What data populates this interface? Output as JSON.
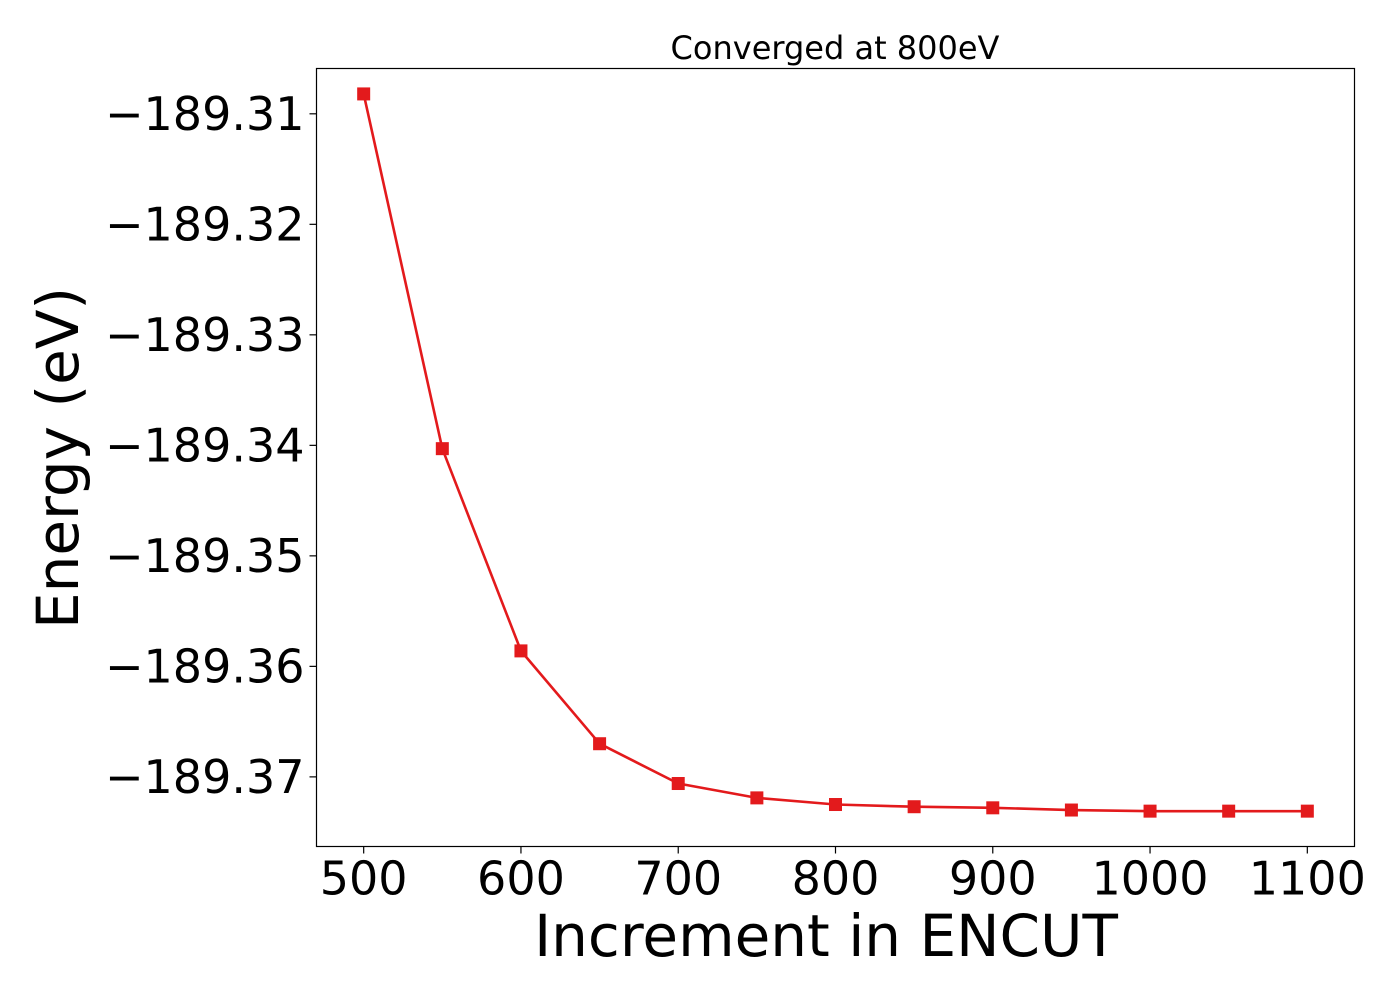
{
  "chart_data": {
    "type": "line",
    "title": "Converged at 800eV",
    "xlabel": "Increment in ENCUT",
    "ylabel": "Energy (eV)",
    "x": [
      500,
      550,
      600,
      650,
      700,
      750,
      800,
      850,
      900,
      950,
      1000,
      1050,
      1100
    ],
    "series": [
      {
        "values": [
          -189.3082,
          -189.3403,
          -189.3586,
          -189.367,
          -189.3706,
          -189.3719,
          -189.3725,
          -189.3727,
          -189.3728,
          -189.373,
          -189.3731,
          -189.3731,
          -189.3731
        ],
        "color": "#e31a1c",
        "marker": "square"
      }
    ],
    "xticks": [
      500,
      600,
      700,
      800,
      900,
      1000,
      1100
    ],
    "yticks": [
      -189.31,
      -189.32,
      -189.33,
      -189.34,
      -189.35,
      -189.36,
      -189.37
    ],
    "ytick_labels": [
      "−189.31",
      "−189.32",
      "−189.33",
      "−189.34",
      "−189.35",
      "−189.36",
      "−189.37"
    ],
    "xlim": [
      470,
      1130
    ],
    "ylim": [
      -189.3763,
      -189.3059
    ],
    "grid": false,
    "legend": "none"
  }
}
